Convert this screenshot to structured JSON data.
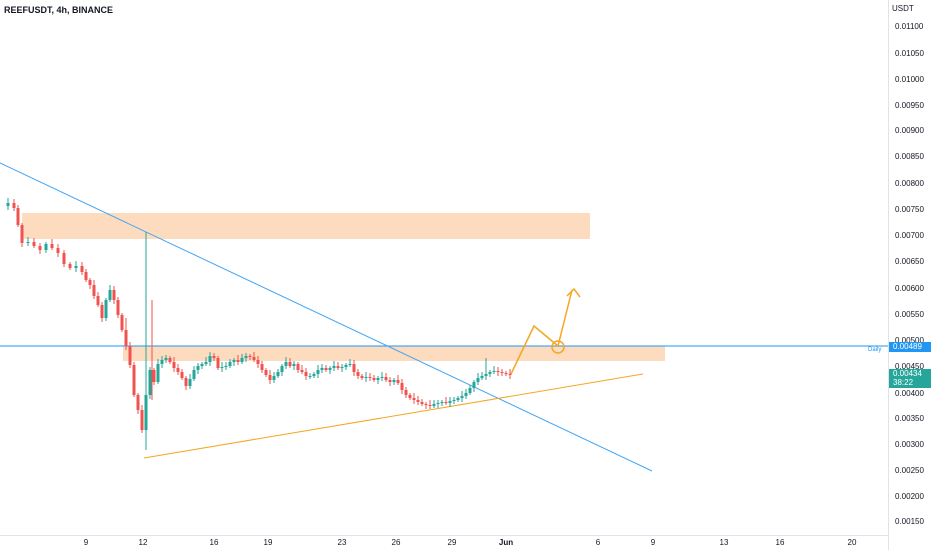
{
  "header": {
    "symbol_title": "REEFUSDT, 4h, BINANCE",
    "currency": "USDT"
  },
  "price_axis": {
    "ticks": [
      "0.01100",
      "0.01050",
      "0.01000",
      "0.00950",
      "0.00900",
      "0.00850",
      "0.00800",
      "0.00750",
      "0.00700",
      "0.00650",
      "0.00600",
      "0.00550",
      "0.00500",
      "0.00450",
      "0.00400",
      "0.00350",
      "0.00300",
      "0.00250",
      "0.00200",
      "0.00150"
    ]
  },
  "time_axis": {
    "ticks": [
      {
        "label": "9",
        "bold": false
      },
      {
        "label": "12",
        "bold": false
      },
      {
        "label": "16",
        "bold": false
      },
      {
        "label": "19",
        "bold": false
      },
      {
        "label": "23",
        "bold": false
      },
      {
        "label": "26",
        "bold": false
      },
      {
        "label": "29",
        "bold": false
      },
      {
        "label": "Jun",
        "bold": true
      },
      {
        "label": "6",
        "bold": false
      },
      {
        "label": "9",
        "bold": false
      },
      {
        "label": "13",
        "bold": false
      },
      {
        "label": "16",
        "bold": false
      },
      {
        "label": "20",
        "bold": false
      }
    ]
  },
  "badges": {
    "hline_price": "0.00489",
    "hline_label": "Daily",
    "last_price": "0.00434",
    "countdown": "38:22"
  },
  "colors": {
    "up": "#26a69a",
    "down": "#ef5350",
    "zone": "#fcd5b4",
    "trendline_blue": "#42a5f5",
    "trendline_orange": "#f5a623",
    "hline": "#2196f3"
  }
}
